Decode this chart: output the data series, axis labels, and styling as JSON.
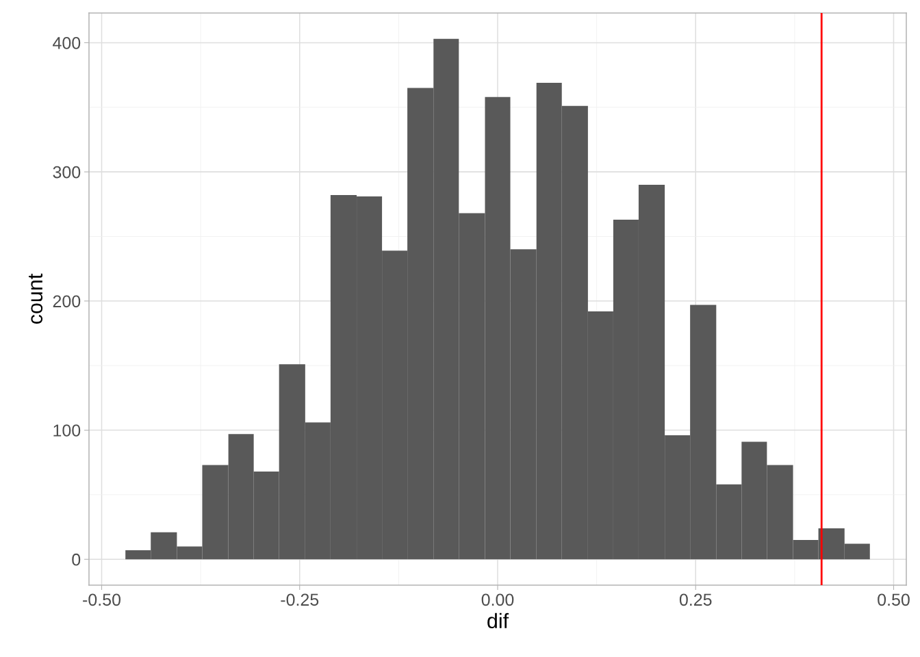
{
  "chart_data": {
    "type": "histogram",
    "xlabel": "dif",
    "ylabel": "count",
    "color": "#595959",
    "bins": [
      -0.47,
      -0.438,
      -0.405,
      -0.373,
      -0.34,
      -0.308,
      -0.276,
      -0.243,
      -0.211,
      -0.178,
      -0.146,
      -0.114,
      -0.081,
      -0.049,
      -0.016,
      0.016,
      0.049,
      0.081,
      0.114,
      0.146,
      0.178,
      0.211,
      0.243,
      0.276,
      0.308,
      0.34,
      0.373,
      0.405,
      0.438,
      0.47
    ],
    "values": [
      7,
      21,
      10,
      73,
      97,
      68,
      151,
      106,
      282,
      281,
      239,
      365,
      403,
      268,
      358,
      240,
      369,
      351,
      192,
      263,
      290,
      96,
      197,
      58,
      91,
      73,
      15,
      24,
      12
    ],
    "xlim": [
      -0.516,
      0.516
    ],
    "ylim": [
      -20,
      423
    ],
    "xticks": [
      {
        "value": -0.5,
        "label": "-0.50"
      },
      {
        "value": -0.25,
        "label": "-0.25"
      },
      {
        "value": 0,
        "label": "0.00"
      },
      {
        "value": 0.25,
        "label": "0.25"
      },
      {
        "value": 0.5,
        "label": "0.50"
      }
    ],
    "yticks": [
      0,
      100,
      200,
      300,
      400
    ],
    "ref_lines": [
      {
        "axis": "x",
        "value": 0.409,
        "color": "#ff0000",
        "line_style": "solid"
      }
    ],
    "grid": true
  }
}
